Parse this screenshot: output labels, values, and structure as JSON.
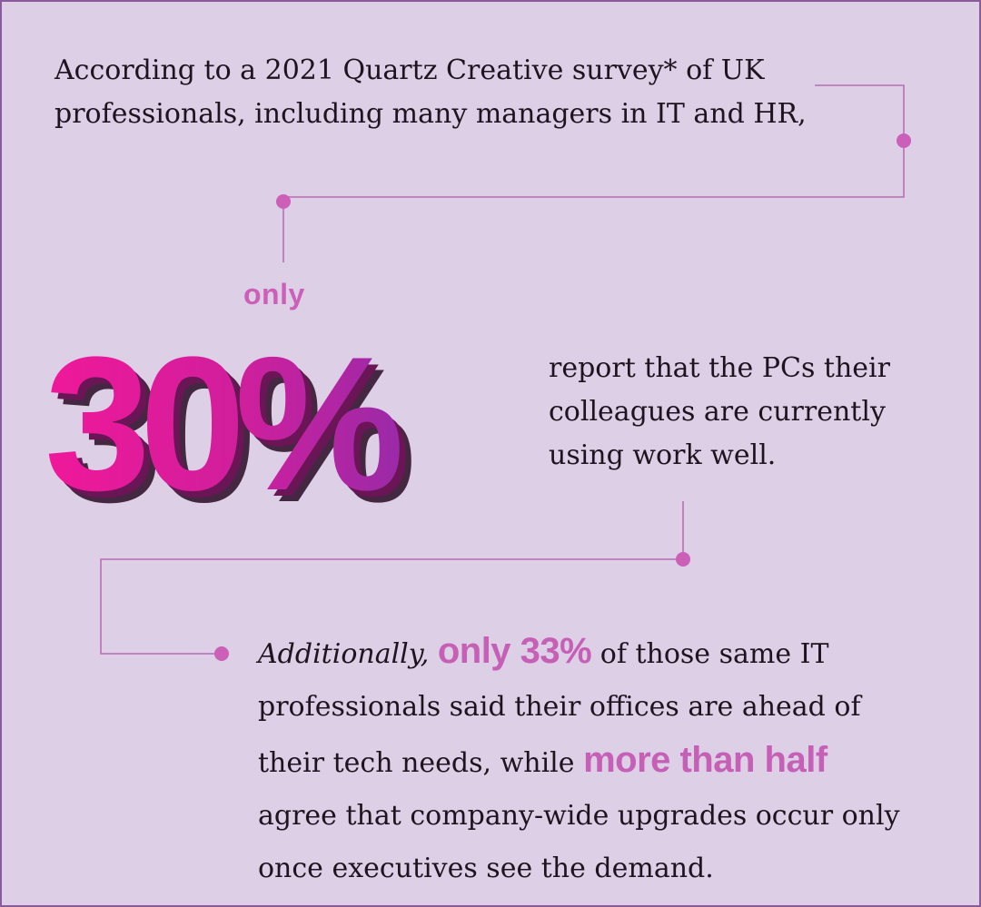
{
  "intro": {
    "line1": "According to a 2021 Quartz Creative survey* of UK",
    "line2": "professionals, including many managers in IT and HR,"
  },
  "stat": {
    "prefix": "only",
    "value": "30%",
    "description_lines": [
      "report that the PCs their",
      "colleagues are currently",
      "using work well."
    ]
  },
  "additional": {
    "lead": "Additionally,",
    "highlight1": "only 33%",
    "text1": " of those same IT",
    "text2": "professionals said their offices are ahead of",
    "text3": "their tech needs, while ",
    "highlight2": "more than half",
    "text4": "agree that company-wide upgrades occur only",
    "text5": "once executives see the demand."
  },
  "colors": {
    "background": "#dccfe6",
    "border": "#8a5a9c",
    "connector": "#b86fb2",
    "dot": "#cc5fb8",
    "highlight": "#c65fb6",
    "stat_gradient_start": "#f0189a",
    "stat_gradient_end": "#9a2aa8",
    "text": "#1e1420"
  }
}
